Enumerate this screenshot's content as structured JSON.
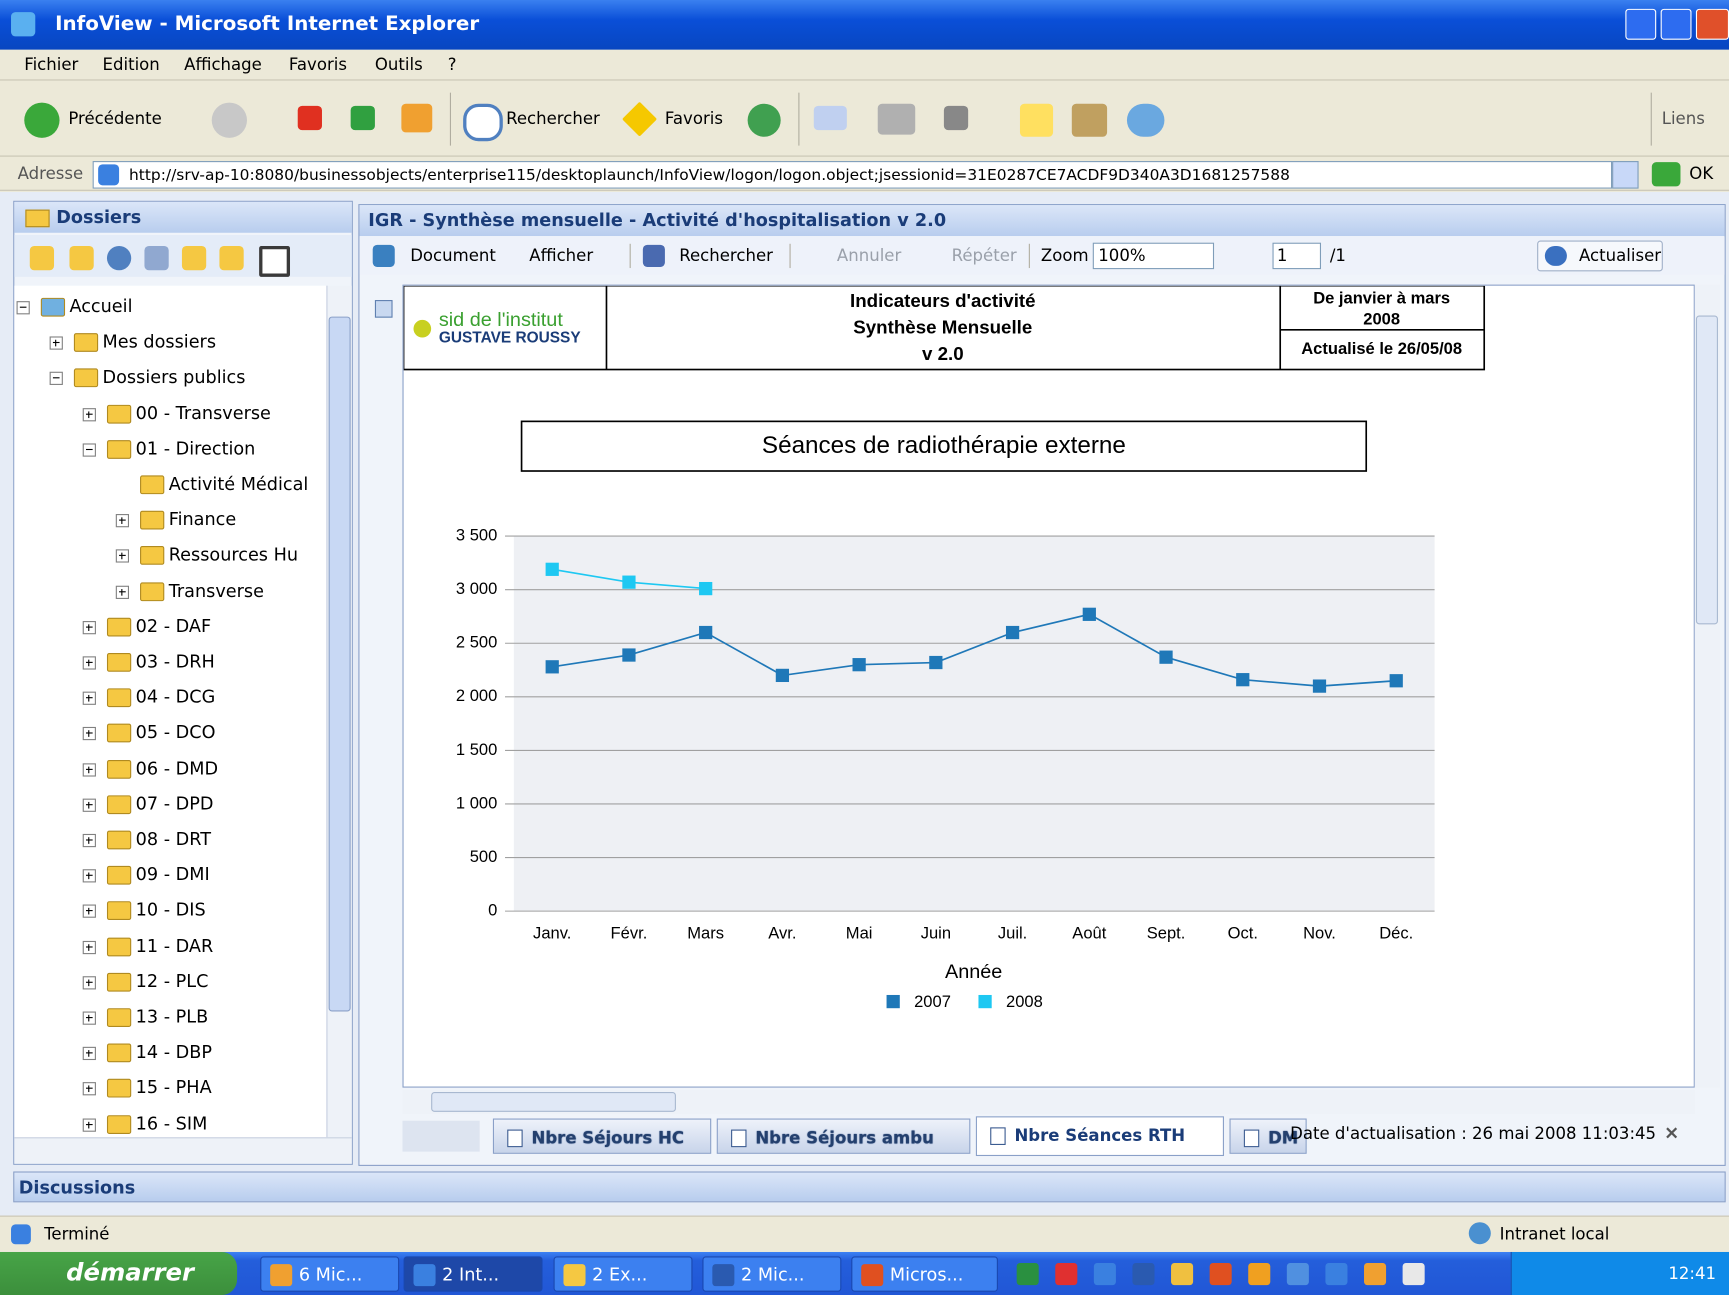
{
  "window": {
    "title": "InfoView - Microsoft Internet Explorer"
  },
  "menu": [
    "Fichier",
    "Edition",
    "Affichage",
    "Favoris",
    "Outils",
    "?"
  ],
  "toolbar": {
    "back": "Précédente",
    "search": "Rechercher",
    "favorites": "Favoris",
    "links": "Liens"
  },
  "address": {
    "label": "Adresse",
    "url": "http://srv-ap-10:8080/businessobjects/enterprise115/desktoplaunch/InfoView/logon/logon.object;jsessionid=31E0287CE7ACDF9D340A3D1681257588",
    "go": "OK"
  },
  "folders": {
    "title": "Dossiers",
    "tree": [
      {
        "label": "Accueil",
        "expanded": true,
        "children": [
          {
            "label": "Mes dossiers",
            "expanded": false
          },
          {
            "label": "Dossiers publics",
            "expanded": true,
            "children": [
              {
                "label": "00 - Transverse",
                "expanded": false
              },
              {
                "label": "01 - Direction",
                "expanded": true,
                "children": [
                  {
                    "label": "Activité Médical"
                  },
                  {
                    "label": "Finance",
                    "expanded": false
                  },
                  {
                    "label": "Ressources Hu",
                    "expanded": false
                  },
                  {
                    "label": "Transverse",
                    "expanded": false
                  }
                ]
              },
              {
                "label": "02 - DAF",
                "expanded": false
              },
              {
                "label": "03 - DRH",
                "expanded": false
              },
              {
                "label": "04 - DCG",
                "expanded": false
              },
              {
                "label": "05 - DCO",
                "expanded": false
              },
              {
                "label": "06 - DMD",
                "expanded": false
              },
              {
                "label": "07 - DPD",
                "expanded": false
              },
              {
                "label": "08 - DRT",
                "expanded": false
              },
              {
                "label": "09 - DMI",
                "expanded": false
              },
              {
                "label": "10 - DIS",
                "expanded": false
              },
              {
                "label": "11 - DAR",
                "expanded": false
              },
              {
                "label": "12 - PLC",
                "expanded": false
              },
              {
                "label": "13 - PLB",
                "expanded": false
              },
              {
                "label": "14 - DBP",
                "expanded": false
              },
              {
                "label": "15 - PHA",
                "expanded": false
              },
              {
                "label": "16 - SIM",
                "expanded": false
              }
            ]
          }
        ]
      }
    ]
  },
  "discussions": "Discussions",
  "document": {
    "title": "IGR - Synthèse mensuelle - Activité d'hospitalisation v 2.0",
    "toolbar": {
      "document": "Document",
      "view": "Afficher",
      "search": "Rechercher",
      "undo": "Annuler",
      "redo": "Répéter",
      "zoom": "Zoom",
      "zoom_value": "100%",
      "page": "1",
      "pages": "/1",
      "refresh": "Actualiser"
    },
    "header": {
      "logo_top": "sid de l'institut",
      "logo_bottom": "GUSTAVE ROUSSY",
      "title": [
        "Indicateurs d'activité",
        "Synthèse Mensuelle",
        "v 2.0"
      ],
      "period": [
        "De janvier à mars",
        "2008"
      ],
      "updated": "Actualisé le 26/05/08"
    },
    "tabs": [
      "Nbre Séjours HC",
      "Nbre Séjours ambu",
      "Nbre Séances RTH",
      "DM"
    ],
    "active_tab": 2,
    "refresh_date": "Date d'actualisation : 26 mai 2008 11:03:45"
  },
  "chart_data": {
    "type": "line",
    "title": "Séances de radiothérapie externe",
    "legend_title": "Année",
    "categories": [
      "Janv.",
      "Févr.",
      "Mars",
      "Avr.",
      "Mai",
      "Juin",
      "Juil.",
      "Août",
      "Sept.",
      "Oct.",
      "Nov.",
      "Déc."
    ],
    "series": [
      {
        "name": "2007",
        "color": "#1f78b8",
        "values": [
          2280,
          2390,
          2600,
          2200,
          2300,
          2320,
          2600,
          2770,
          2370,
          2160,
          2100,
          2150
        ]
      },
      {
        "name": "2008",
        "color": "#1ec8f2",
        "values": [
          3190,
          3070,
          3010,
          null,
          null,
          null,
          null,
          null,
          null,
          null,
          null,
          null
        ]
      }
    ],
    "ylim": [
      0,
      3500
    ],
    "yticks": [
      0,
      500,
      {
        "value": 1000,
        "label": "1 000"
      },
      {
        "value": 1500,
        "label": "1 500"
      },
      {
        "value": 2000,
        "label": "2 000"
      },
      {
        "value": 2500,
        "label": "2 500"
      },
      {
        "value": 3000,
        "label": "3 000"
      },
      {
        "value": 3500,
        "label": "3 500"
      }
    ],
    "grid": true
  },
  "status": {
    "text": "Terminé",
    "zone": "Intranet local"
  },
  "taskbar": {
    "start": "démarrer",
    "items": [
      "6 Mic...",
      "2 Int...",
      "2 Ex...",
      "2 Mic...",
      "Micros..."
    ],
    "clock": "12:41"
  }
}
